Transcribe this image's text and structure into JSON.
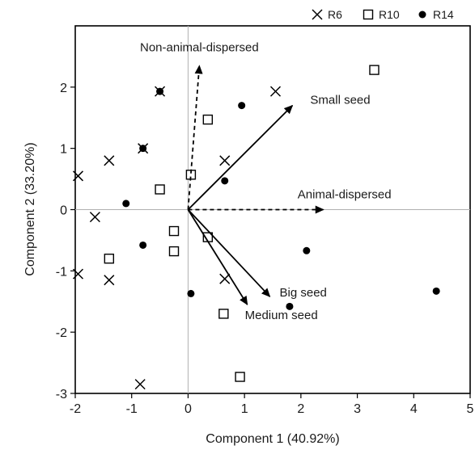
{
  "chart_data": {
    "type": "scatter",
    "xlabel": "Component 1 (40.92%)",
    "ylabel": "Component 2 (33.20%)",
    "xlim": [
      -2,
      5
    ],
    "ylim": [
      -3,
      3
    ],
    "xticks": [
      -2,
      -1,
      0,
      1,
      2,
      3,
      4,
      5
    ],
    "yticks": [
      -3,
      -2,
      -1,
      0,
      1,
      2
    ],
    "grid": false,
    "reference_lines": {
      "x": 0,
      "y": 0
    },
    "legend": {
      "placement": "top-right",
      "entries": [
        {
          "label": "R6",
          "marker": "x"
        },
        {
          "label": "R10",
          "marker": "open-square"
        },
        {
          "label": "R14",
          "marker": "filled-circle"
        }
      ]
    },
    "series": [
      {
        "name": "R6",
        "marker": "x",
        "points": [
          [
            -1.95,
            0.55
          ],
          [
            -1.4,
            0.8
          ],
          [
            -1.65,
            -0.12
          ],
          [
            -1.95,
            -1.05
          ],
          [
            -1.4,
            -1.15
          ],
          [
            -0.8,
            1.0
          ],
          [
            -0.5,
            1.93
          ],
          [
            0.65,
            0.8
          ],
          [
            1.55,
            1.93
          ],
          [
            0.65,
            -1.13
          ],
          [
            -0.85,
            -2.85
          ]
        ]
      },
      {
        "name": "R10",
        "marker": "open-square",
        "points": [
          [
            0.05,
            0.57
          ],
          [
            -0.5,
            0.33
          ],
          [
            0.35,
            1.47
          ],
          [
            3.3,
            2.28
          ],
          [
            -0.25,
            -0.35
          ],
          [
            -0.25,
            -0.68
          ],
          [
            0.35,
            -0.45
          ],
          [
            -1.4,
            -0.8
          ],
          [
            0.63,
            -1.7
          ],
          [
            0.92,
            -2.73
          ]
        ]
      },
      {
        "name": "R14",
        "marker": "filled-circle",
        "points": [
          [
            -0.5,
            1.93
          ],
          [
            -0.8,
            1.0
          ],
          [
            0.95,
            1.7
          ],
          [
            0.65,
            0.47
          ],
          [
            -1.1,
            0.1
          ],
          [
            -0.8,
            -0.58
          ],
          [
            0.05,
            -1.37
          ],
          [
            1.8,
            -1.58
          ],
          [
            2.1,
            -0.67
          ],
          [
            4.4,
            -1.33
          ]
        ]
      }
    ],
    "vectors": [
      {
        "label": "Non-animal-dispersed",
        "x": 0.2,
        "y": 2.35,
        "style": "dashed"
      },
      {
        "label": "Small seed",
        "x": 1.85,
        "y": 1.7,
        "style": "solid"
      },
      {
        "label": "Animal-dispersed",
        "x": 2.4,
        "y": 0,
        "style": "dashed"
      },
      {
        "label": "Big seed",
        "x": 1.45,
        "y": -1.42,
        "style": "solid"
      },
      {
        "label": "Medium seed",
        "x": 1.05,
        "y": -1.55,
        "style": "solid"
      }
    ]
  }
}
